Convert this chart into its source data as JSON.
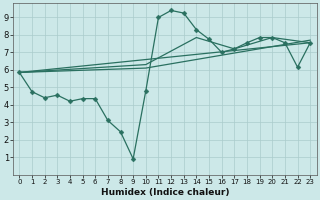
{
  "xlabel": "Humidex (Indice chaleur)",
  "bg_color": "#cce8e8",
  "grid_color": "#aacccc",
  "line_color": "#2a7060",
  "xlim": [
    -0.5,
    23.5
  ],
  "ylim": [
    0,
    9.8
  ],
  "xticks": [
    0,
    1,
    2,
    3,
    4,
    5,
    6,
    7,
    8,
    9,
    10,
    11,
    12,
    13,
    14,
    15,
    16,
    17,
    18,
    19,
    20,
    21,
    22,
    23
  ],
  "yticks": [
    1,
    2,
    3,
    4,
    5,
    6,
    7,
    8,
    9
  ],
  "main_line": {
    "x": [
      0,
      1,
      2,
      3,
      4,
      5,
      6,
      7,
      8,
      9,
      10,
      11,
      12,
      13,
      14,
      15,
      16,
      17,
      18,
      19,
      20,
      21,
      22,
      23
    ],
    "y": [
      5.85,
      4.75,
      4.4,
      4.55,
      4.2,
      4.35,
      4.35,
      3.1,
      2.45,
      0.9,
      4.8,
      9.0,
      9.4,
      9.25,
      8.3,
      7.75,
      7.0,
      7.2,
      7.55,
      7.85,
      7.85,
      7.55,
      6.15,
      7.55
    ]
  },
  "smooth_lines": [
    {
      "x": [
        0,
        23
      ],
      "y": [
        5.85,
        7.55
      ]
    },
    {
      "x": [
        0,
        10,
        23
      ],
      "y": [
        5.85,
        6.1,
        7.7
      ]
    },
    {
      "x": [
        0,
        10,
        14,
        17,
        20,
        23
      ],
      "y": [
        5.85,
        6.3,
        7.85,
        7.2,
        7.85,
        7.55
      ]
    }
  ]
}
